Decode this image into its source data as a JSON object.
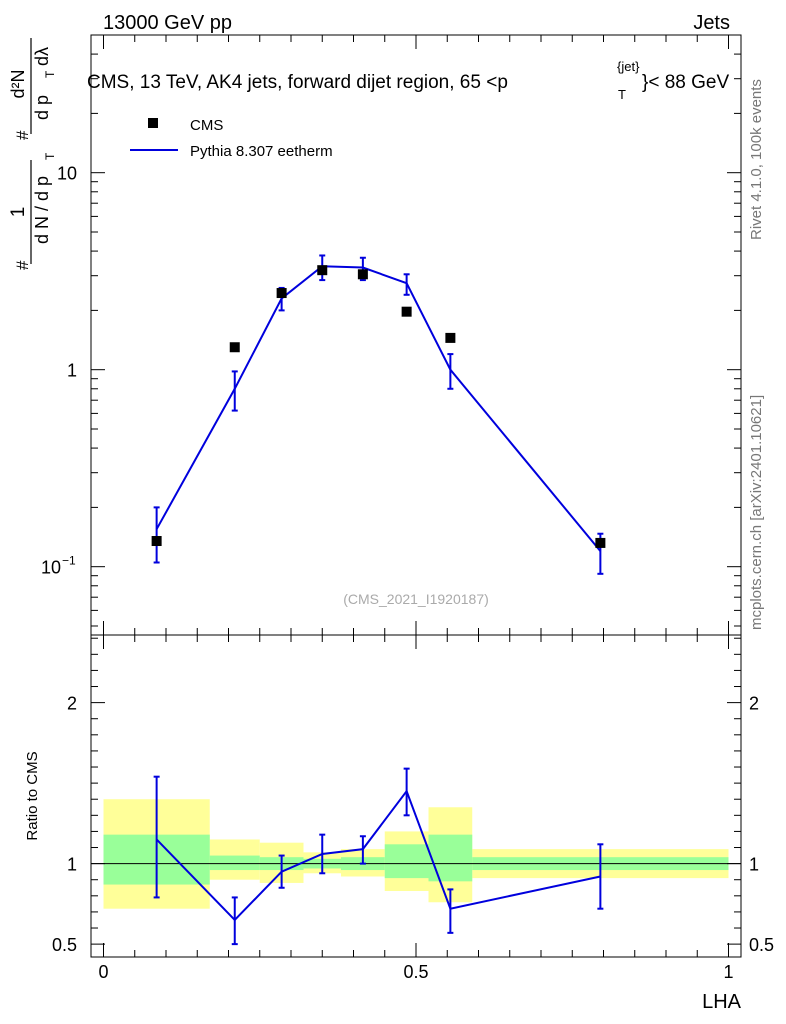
{
  "header": {
    "beam_label": "13000 GeV pp",
    "observable_group": "Jets"
  },
  "side_labels": {
    "rivet": "Rivet 4.1.0,  100k events",
    "mcplots": "mcplots.cern.ch [arXiv:2401.10621]"
  },
  "colors": {
    "mc_line": "#0000dd",
    "band_outer": "#ffff99",
    "band_inner": "#99ff99",
    "data_marker": "#000000"
  },
  "chart_data": [
    {
      "name": "main-panel",
      "type": "scatter",
      "title": "CMS, 13 TeV, AK4 jets, forward dijet region, 65 <p",
      "title_sup": "{jet}",
      "title_sub": "T",
      "title_suffix": "}< 88 GeV",
      "ylabel_parts": [
        "#",
        "1",
        "d N / d p",
        "T",
        "#",
        "d²N",
        "d p",
        "T",
        "dλ"
      ],
      "yscale": "log",
      "ylim": [
        0.045,
        50
      ],
      "xlim": [
        -0.02,
        1.02
      ],
      "y_ticks": [
        {
          "value": 0.1,
          "label": "10",
          "sup": "−1"
        },
        {
          "value": 1,
          "label": "1",
          "sup": ""
        },
        {
          "value": 10,
          "label": "10",
          "sup": ""
        }
      ],
      "watermark": "(CMS_2021_I1920187)",
      "legend": [
        {
          "name": "CMS",
          "marker": "square"
        },
        {
          "name": "Pythia 8.307 eetherm",
          "marker": "line"
        }
      ],
      "legend_position": "top-left",
      "bins": [
        {
          "lo": 0.0,
          "hi": 0.17
        },
        {
          "lo": 0.17,
          "hi": 0.25
        },
        {
          "lo": 0.25,
          "hi": 0.32
        },
        {
          "lo": 0.32,
          "hi": 0.38
        },
        {
          "lo": 0.38,
          "hi": 0.45
        },
        {
          "lo": 0.45,
          "hi": 0.52
        },
        {
          "lo": 0.52,
          "hi": 0.59
        },
        {
          "lo": 0.59,
          "hi": 1.0
        }
      ],
      "series": [
        {
          "name": "CMS",
          "x": [
            0.085,
            0.21,
            0.285,
            0.35,
            0.415,
            0.485,
            0.555,
            0.795
          ],
          "y": [
            0.135,
            1.3,
            2.45,
            3.2,
            3.05,
            1.97,
            1.45,
            0.132
          ]
        },
        {
          "name": "Pythia 8.307 eetherm",
          "x": [
            0.085,
            0.21,
            0.285,
            0.35,
            0.415,
            0.485,
            0.555,
            0.795
          ],
          "y": [
            0.155,
            0.8,
            2.3,
            3.35,
            3.3,
            2.75,
            1.0,
            0.12
          ],
          "yerr_lo": [
            0.05,
            0.18,
            0.3,
            0.5,
            0.45,
            0.35,
            0.2,
            0.028
          ],
          "yerr_hi": [
            0.045,
            0.18,
            0.3,
            0.45,
            0.4,
            0.3,
            0.2,
            0.027
          ]
        }
      ]
    },
    {
      "name": "ratio-panel",
      "type": "line",
      "ylabel": "Ratio to CMS",
      "xlabel": "LHA",
      "ylim": [
        0.42,
        2.42
      ],
      "xlim": [
        -0.02,
        1.02
      ],
      "y_ticks": [
        {
          "value": 0.5,
          "label": "0.5"
        },
        {
          "value": 1,
          "label": "1"
        },
        {
          "value": 2,
          "label": "2"
        }
      ],
      "x_ticks": [
        {
          "value": 0,
          "label": "0"
        },
        {
          "value": 0.5,
          "label": "0.5"
        },
        {
          "value": 1,
          "label": "1"
        }
      ],
      "reference": 1.0,
      "bands": [
        {
          "lo": 0.0,
          "hi": 0.17,
          "outer": [
            0.72,
            1.4
          ],
          "inner": [
            0.87,
            1.18
          ]
        },
        {
          "lo": 0.17,
          "hi": 0.25,
          "outer": [
            0.9,
            1.15
          ],
          "inner": [
            0.96,
            1.05
          ]
        },
        {
          "lo": 0.25,
          "hi": 0.32,
          "outer": [
            0.88,
            1.13
          ],
          "inner": [
            0.96,
            1.04
          ]
        },
        {
          "lo": 0.32,
          "hi": 0.38,
          "outer": [
            0.94,
            1.07
          ],
          "inner": [
            0.97,
            1.03
          ]
        },
        {
          "lo": 0.38,
          "hi": 0.45,
          "outer": [
            0.92,
            1.09
          ],
          "inner": [
            0.96,
            1.04
          ]
        },
        {
          "lo": 0.45,
          "hi": 0.52,
          "outer": [
            0.83,
            1.2
          ],
          "inner": [
            0.91,
            1.12
          ]
        },
        {
          "lo": 0.52,
          "hi": 0.59,
          "outer": [
            0.76,
            1.35
          ],
          "inner": [
            0.89,
            1.18
          ]
        },
        {
          "lo": 0.59,
          "hi": 1.0,
          "outer": [
            0.91,
            1.09
          ],
          "inner": [
            0.96,
            1.04
          ]
        }
      ],
      "series": [
        {
          "name": "Pythia 8.307 eetherm",
          "x": [
            0.085,
            0.21,
            0.285,
            0.35,
            0.415,
            0.485,
            0.555,
            0.795
          ],
          "y": [
            1.15,
            0.65,
            0.95,
            1.06,
            1.09,
            1.45,
            0.72,
            0.92
          ],
          "yerr_lo": [
            0.36,
            0.15,
            0.1,
            0.12,
            0.09,
            0.15,
            0.15,
            0.2
          ],
          "yerr_hi": [
            0.39,
            0.14,
            0.1,
            0.12,
            0.08,
            0.14,
            0.12,
            0.2
          ]
        }
      ]
    }
  ]
}
